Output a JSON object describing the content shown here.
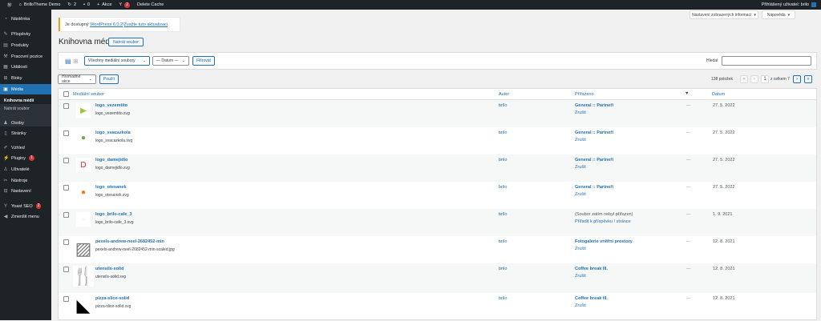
{
  "adminbar": {
    "site": "BrilloTheme Demo",
    "updates": "2",
    "comments": "0",
    "new": "Akce",
    "yoast_count": "2",
    "cache": "Delete Cache",
    "user": "Přihlášený uživatel: brilo"
  },
  "sidebar": {
    "items": [
      {
        "label": "Nástěnka",
        "icon": "dashboard-icon",
        "glyph": "◔"
      },
      {
        "label": "Příspěvky",
        "icon": "pin-icon",
        "glyph": "✎"
      },
      {
        "label": "Produkty",
        "icon": "archive-icon",
        "glyph": "▤"
      },
      {
        "label": "Pracovní pozice",
        "icon": "wrench-icon",
        "glyph": "⚒"
      },
      {
        "label": "Události",
        "icon": "calendar-icon",
        "glyph": "▦"
      },
      {
        "label": "Bloky",
        "icon": "cart-icon",
        "glyph": "⊞"
      },
      {
        "label": "Média",
        "icon": "media-icon",
        "glyph": "▣"
      },
      {
        "label": "Osoby",
        "icon": "people-icon",
        "glyph": "♟"
      },
      {
        "label": "Stránky",
        "icon": "page-icon",
        "glyph": "▯"
      },
      {
        "label": "Vzhled",
        "icon": "brush-icon",
        "glyph": "✐"
      },
      {
        "label": "Pluginy",
        "icon": "plugin-icon",
        "glyph": "⚡",
        "badge": "1"
      },
      {
        "label": "Uživatelé",
        "icon": "user-icon",
        "glyph": "♙"
      },
      {
        "label": "Nástroje",
        "icon": "tools-icon",
        "glyph": "✂"
      },
      {
        "label": "Nastavení",
        "icon": "settings-icon",
        "glyph": "⊟"
      },
      {
        "label": "Yoast SEO",
        "icon": "yoast-icon",
        "glyph": "Y",
        "badge": "2"
      },
      {
        "label": "Zmenšit menu",
        "icon": "collapse-icon",
        "glyph": "◀"
      }
    ],
    "submenu": [
      "Knihovna médií",
      "Nahrát soubor"
    ]
  },
  "screen_options": "Nastavení zobrazených informací",
  "help": "Nápověda",
  "notice": {
    "prefix": "Je dostupný ",
    "link1": "WordPress 6.0.2",
    "mid": "! ",
    "link2": "Zvažte tuto aktualizaci",
    "suffix": "."
  },
  "page": {
    "title": "Knihovna médií",
    "add_new": "Nahrát soubor"
  },
  "filters": {
    "type": "Všechny mediální soubory",
    "date": "— Datum —",
    "filter": "Filtrovat",
    "search_label": "Hledat",
    "search_value": ""
  },
  "bulk": {
    "action": "Hromadné akce",
    "apply": "Použít"
  },
  "pagination": {
    "count": "138 položek",
    "current": "1",
    "total": "z celkem 7",
    "first": "«",
    "prev": "‹",
    "next": "›",
    "last": "»"
  },
  "table": {
    "headers": {
      "file": "Mediální soubor",
      "author": "Autor",
      "attached": "Přiřazeno",
      "date": "Datum"
    },
    "rows": [
      {
        "title": "logo_vezemtito",
        "file": "logo_vezemtito.svg",
        "author": "brilo",
        "attached": "General :: Partneři",
        "action": "Zrušit",
        "comments": "—",
        "date": "27. 5. 2022",
        "thumb": "▶",
        "color": "#9bc53d"
      },
      {
        "title": "logo_svacazkola",
        "file": "logo_svacazkola.svg",
        "author": "brilo",
        "attached": "General :: Partneři",
        "action": "Zrušit",
        "comments": "—",
        "date": "27. 5. 2022",
        "thumb": "●",
        "color": "#6aa84f"
      },
      {
        "title": "logo_damejidlo",
        "file": "logo_damejidlo.svg",
        "author": "brilo",
        "attached": "General :: Partneři",
        "action": "Zrušit",
        "comments": "—",
        "date": "27. 5. 2022",
        "thumb": "D",
        "color": "#e8222a"
      },
      {
        "title": "logo_otesanek",
        "file": "logo_otesanek.svg",
        "author": "brilo",
        "attached": "General :: Partneři",
        "action": "Zrušit",
        "comments": "—",
        "date": "27. 5. 2022",
        "thumb": "●",
        "color": "#e67e22"
      },
      {
        "title": "logo_brilo-cafe_3",
        "file": "logo_brilo-cafe_3.svg",
        "author": "brilo",
        "attached": "(Soubor zatím nebyl přiřazen)",
        "action": "Přiřadit k příspěvku / stránce",
        "comments": "—",
        "date": "1. 9. 2021",
        "thumb": "·",
        "color": "#e8c9a0",
        "unattached": true
      },
      {
        "title": "pexels-andrew-neel-2682452-min",
        "file": "pexels-andrew-neel-2682452-min-scaled.jpg",
        "author": "brilo",
        "attached": "Fotogalerie vnitřní prostory",
        "action": "Zrušit",
        "comments": "—",
        "date": "12. 8. 2021",
        "thumb": "▨",
        "color": "#777"
      },
      {
        "title": "utensils-solid",
        "file": "utensils-solid.svg",
        "author": "brilo",
        "attached": "Coffee break III.",
        "action": "Zrušit",
        "comments": "—",
        "date": "12. 8. 2021",
        "thumb": "🍴",
        "color": "#000"
      },
      {
        "title": "pizza-slice-solid",
        "file": "pizza-slice-solid.svg",
        "author": "brilo",
        "attached": "Coffee break III.",
        "action": "Zrušit",
        "comments": "—",
        "date": "12. 8. 2021",
        "thumb": "◣",
        "color": "#000"
      }
    ]
  },
  "colors": {
    "accent": "#2271b1",
    "sidebar": "#1d2327",
    "badge": "#d63638"
  }
}
